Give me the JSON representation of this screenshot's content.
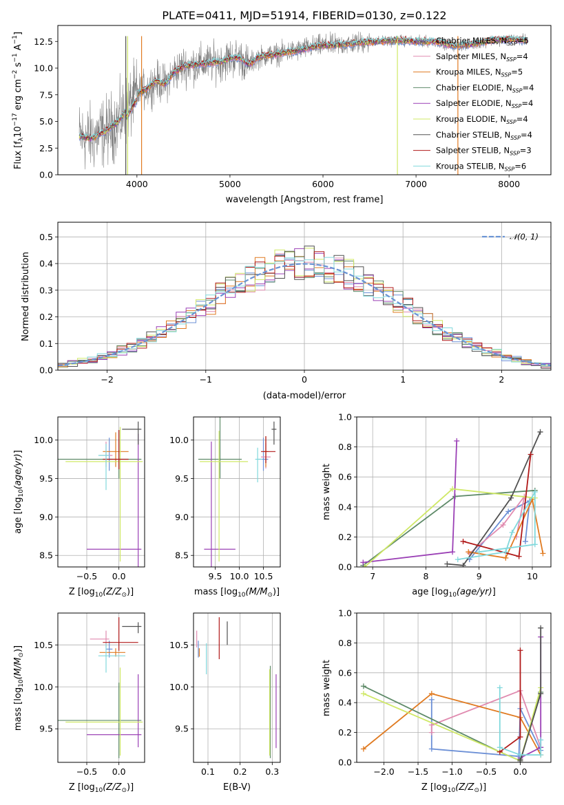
{
  "colors": {
    "Chabrier MILES": "#6b8fd6",
    "Salpeter MILES": "#e08aaf",
    "Kroupa MILES": "#e07a20",
    "Chabrier ELODIE": "#5e8a68",
    "Salpeter ELODIE": "#9a3fb5",
    "Kroupa ELODIE": "#cfe866",
    "Chabrier STELIB": "#505050",
    "Salpeter STELIB": "#b01818",
    "Kroupa STELIB": "#80d8dc",
    "spectrum": "#808080",
    "normal": "#6a93d4"
  },
  "chart_data": [
    {
      "id": "spectrum",
      "type": "line",
      "title": "PLATE=0411, MJD=51914, FIBERID=0130, z=0.122",
      "xlabel": "wavelength [Angstrom, rest frame]",
      "ylabel": "Flux [fλ10⁻¹⁷ erg cm⁻² s⁻¹ A⁻¹]",
      "xlim": [
        3150,
        8450
      ],
      "ylim": [
        0,
        14
      ],
      "xticks": [
        "4000",
        "5000",
        "6000",
        "7000",
        "8000"
      ],
      "yticks": [
        "0.0",
        "2.5",
        "5.0",
        "7.5",
        "10.0",
        "12.5"
      ],
      "legend_position": "top-right",
      "legend": [
        {
          "model": "Chabrier MILES",
          "label": "Chabrier MILES, N",
          "sub": "SSP",
          "tail": "=5"
        },
        {
          "model": "Salpeter MILES",
          "label": "Salpeter MILES, N",
          "sub": "SSP",
          "tail": "=4"
        },
        {
          "model": "Kroupa MILES",
          "label": "Kroupa MILES, N",
          "sub": "SSP",
          "tail": "=5"
        },
        {
          "model": "Chabrier ELODIE",
          "label": "Chabrier ELODIE, N",
          "sub": "SSP",
          "tail": "=4"
        },
        {
          "model": "Salpeter ELODIE",
          "label": "Salpeter ELODIE, N",
          "sub": "SSP",
          "tail": "=4"
        },
        {
          "model": "Kroupa ELODIE",
          "label": "Kroupa ELODIE, N",
          "sub": "SSP",
          "tail": "=4"
        },
        {
          "model": "Chabrier STELIB",
          "label": "Chabrier STELIB, N",
          "sub": "SSP",
          "tail": "=4"
        },
        {
          "model": "Salpeter STELIB",
          "label": "Salpeter STELIB, N",
          "sub": "SSP",
          "tail": "=3"
        },
        {
          "model": "Kroupa STELIB",
          "label": "Kroupa STELIB, N",
          "sub": "SSP",
          "tail": "=6"
        }
      ],
      "continuum_x": [
        3380,
        3500,
        3600,
        3700,
        3800,
        3900,
        4000,
        4100,
        4200,
        4300,
        4400,
        4500,
        4600,
        4700,
        4800,
        4900,
        5000,
        5100,
        5200,
        5300,
        5400,
        5500,
        5600,
        5700,
        5800,
        5900,
        6000,
        6200,
        6400,
        6600,
        6800,
        7000,
        7200,
        7400,
        7600,
        7800,
        8000,
        8200
      ],
      "continuum_y": [
        3.6,
        3.4,
        3.8,
        4.3,
        5.0,
        6.2,
        7.6,
        8.0,
        8.8,
        8.5,
        9.6,
        10.2,
        10.3,
        10.4,
        10.5,
        10.6,
        10.9,
        11.0,
        10.3,
        11.0,
        11.2,
        11.3,
        11.5,
        11.6,
        11.8,
        12.0,
        12.1,
        12.2,
        12.4,
        12.5,
        12.6,
        12.5,
        12.5,
        12.1,
        12.2,
        12.6,
        12.7,
        12.6
      ],
      "absorption_features": [
        {
          "model": "Chabrier STELIB",
          "x": 3880
        },
        {
          "model": "Kroupa ELODIE",
          "x": 3900
        },
        {
          "model": "Kroupa MILES",
          "x": 4050
        },
        {
          "model": "Kroupa ELODIE",
          "x": 6800
        },
        {
          "model": "Kroupa MILES",
          "x": 7450
        }
      ]
    },
    {
      "id": "residuals",
      "type": "histogram",
      "xlabel": "(data-model)/error",
      "ylabel": "Normed distribution",
      "xlim": [
        -2.5,
        2.5
      ],
      "ylim": [
        0,
        0.555
      ],
      "xticks": [
        "−2",
        "−1",
        "0",
        "1",
        "2"
      ],
      "yticks": [
        "0.0",
        "0.1",
        "0.2",
        "0.3",
        "0.4",
        "0.5"
      ],
      "grid": true,
      "legend_position": "top-right",
      "normal_label": "𝒩(0, 1)"
    },
    {
      "id": "age-vs-Z",
      "type": "errorbar",
      "xlabel": "Z [log₁₀(Z/Z⊙)]",
      "ylabel": "age  [log₁₀(age/yr)]",
      "xlim": [
        -0.95,
        0.4
      ],
      "ylim": [
        8.35,
        10.3
      ],
      "xticks": [
        "−0.5",
        "0.0"
      ],
      "yticks": [
        "8.5",
        "9.0",
        "9.5",
        "10.0"
      ],
      "grid": true,
      "points": [
        {
          "model": "Chabrier MILES",
          "x": -0.15,
          "y": 9.75,
          "xerr": [
            0.05,
            0.05
          ],
          "yerr": [
            0.15,
            0.28
          ]
        },
        {
          "model": "Salpeter MILES",
          "x": -0.2,
          "y": 9.8,
          "xerr": [
            0.1,
            0.1
          ],
          "yerr": [
            0.15,
            0.18
          ]
        },
        {
          "model": "Kroupa MILES",
          "x": -0.05,
          "y": 9.85,
          "xerr": [
            0.2,
            0.2
          ],
          "yerr": [
            0.2,
            0.25
          ]
        },
        {
          "model": "Chabrier ELODIE",
          "x": 0.0,
          "y": 9.75,
          "xerr": [
            0.95,
            0.35
          ],
          "yerr": [
            0.25,
            0.38
          ]
        },
        {
          "model": "Salpeter ELODIE",
          "x": 0.3,
          "y": 8.58,
          "xerr": [
            0.8,
            0.05
          ],
          "yerr": [
            0.25,
            1.5
          ]
        },
        {
          "model": "Kroupa ELODIE",
          "x": 0.02,
          "y": 9.72,
          "xerr": [
            0.85,
            0.35
          ],
          "yerr": [
            1.3,
            0.45
          ]
        },
        {
          "model": "Chabrier STELIB",
          "x": 0.3,
          "y": 10.14,
          "xerr": [
            0.25,
            0.05
          ],
          "yerr": [
            0.2,
            0.1
          ]
        },
        {
          "model": "Salpeter STELIB",
          "x": 0.0,
          "y": 9.75,
          "xerr": [
            0.25,
            0.15
          ],
          "yerr": [
            0.13,
            0.38
          ]
        },
        {
          "model": "Kroupa STELIB",
          "x": -0.2,
          "y": 9.8,
          "xerr": [
            0.12,
            0.05
          ],
          "yerr": [
            0.45,
            0.15
          ]
        }
      ]
    },
    {
      "id": "age-vs-mass",
      "type": "errorbar",
      "xlabel": "mass [log₁₀(M/M⊙)]",
      "xlim": [
        9.05,
        10.85
      ],
      "ylim": [
        8.35,
        10.3
      ],
      "xticks": [
        "9.5",
        "10.0",
        "10.5"
      ],
      "yticks": [
        "8.5",
        "9.0",
        "9.5",
        "10.0"
      ],
      "grid": true,
      "points": [
        {
          "model": "Chabrier MILES",
          "x": 10.5,
          "y": 9.75,
          "xerr": [
            0.1,
            0.1
          ],
          "yerr": [
            0.15,
            0.28
          ]
        },
        {
          "model": "Salpeter MILES",
          "x": 10.55,
          "y": 9.78,
          "xerr": [
            0.1,
            0.1
          ],
          "yerr": [
            0.15,
            0.18
          ]
        },
        {
          "model": "Kroupa MILES",
          "x": 10.55,
          "y": 9.85,
          "xerr": [
            0.05,
            0.05
          ],
          "yerr": [
            0.2,
            0.2
          ]
        },
        {
          "model": "Chabrier ELODIE",
          "x": 9.6,
          "y": 9.75,
          "xerr": [
            0.45,
            0.45
          ],
          "yerr": [
            0.25,
            1.3
          ]
        },
        {
          "model": "Salpeter ELODIE",
          "x": 9.42,
          "y": 8.58,
          "xerr": [
            0.15,
            0.5
          ],
          "yerr": [
            0.25,
            1.4
          ]
        },
        {
          "model": "Kroupa ELODIE",
          "x": 9.58,
          "y": 9.72,
          "xerr": [
            0.4,
            0.6
          ],
          "yerr": [
            1.3,
            0.4
          ]
        },
        {
          "model": "Chabrier STELIB",
          "x": 10.72,
          "y": 10.14,
          "xerr": [
            0.05,
            0.05
          ],
          "yerr": [
            0.2,
            0.1
          ]
        },
        {
          "model": "Salpeter STELIB",
          "x": 10.55,
          "y": 9.85,
          "xerr": [
            0.1,
            0.2
          ],
          "yerr": [
            0.15,
            0.2
          ]
        },
        {
          "model": "Kroupa STELIB",
          "x": 10.38,
          "y": 9.75,
          "xerr": [
            0.05,
            0.1
          ],
          "yerr": [
            0.3,
            0.15
          ]
        }
      ]
    },
    {
      "id": "weight-vs-age",
      "type": "line",
      "xlabel": "age  [log₁₀(age/yr)]",
      "ylabel": "mass weight",
      "xlim": [
        6.7,
        10.35
      ],
      "ylim": [
        0,
        1.0
      ],
      "xticks": [
        "7",
        "8",
        "9",
        "10"
      ],
      "yticks": [
        "0.0",
        "0.2",
        "0.4",
        "0.6",
        "0.8",
        "1.0"
      ],
      "grid": true,
      "series": [
        {
          "model": "Chabrier MILES",
          "x": [
            8.82,
            9.55,
            9.95,
            9.87
          ],
          "y": [
            0.05,
            0.37,
            0.44,
            0.17
          ]
        },
        {
          "model": "Salpeter MILES",
          "x": [
            8.82,
            9.45,
            9.85,
            9.7
          ],
          "y": [
            0.09,
            0.28,
            0.47,
            0.2
          ]
        },
        {
          "model": "Kroupa MILES",
          "x": [
            8.8,
            9.5,
            10.0,
            10.2
          ],
          "y": [
            0.1,
            0.06,
            0.45,
            0.09
          ]
        },
        {
          "model": "Chabrier ELODIE",
          "x": [
            6.82,
            8.55,
            10.05
          ],
          "y": [
            0.01,
            0.47,
            0.51
          ]
        },
        {
          "model": "Salpeter ELODIE",
          "x": [
            6.82,
            8.5,
            8.58
          ],
          "y": [
            0.03,
            0.1,
            0.84
          ]
        },
        {
          "model": "Kroupa ELODIE",
          "x": [
            6.85,
            8.5,
            10.05
          ],
          "y": [
            0.0,
            0.52,
            0.46
          ]
        },
        {
          "model": "Chabrier STELIB",
          "x": [
            8.4,
            8.7,
            9.6,
            10.15
          ],
          "y": [
            0.02,
            0.01,
            0.46,
            0.9
          ]
        },
        {
          "model": "Salpeter STELIB",
          "x": [
            8.7,
            9.75,
            9.97
          ],
          "y": [
            0.17,
            0.07,
            0.75
          ]
        },
        {
          "model": "Kroupa STELIB",
          "x": [
            8.6,
            9.5,
            9.62,
            10.05,
            10.05,
            9.0
          ],
          "y": [
            0.05,
            0.1,
            0.23,
            0.5,
            0.15,
            0.1
          ]
        }
      ]
    },
    {
      "id": "mass-vs-Z",
      "type": "errorbar",
      "xlabel": "Z [log₁₀(Z/Z⊙)]",
      "ylabel": "mass [log₁₀(M/M⊙)]",
      "xlim": [
        -0.95,
        0.4
      ],
      "ylim": [
        9.1,
        10.88
      ],
      "xticks": [
        "−0.5",
        "0.0"
      ],
      "yticks": [
        "9.5",
        "10.0",
        "10.5"
      ],
      "grid": true,
      "points": [
        {
          "model": "Chabrier MILES",
          "x": -0.15,
          "y": 10.45,
          "xerr": [
            0.05,
            0.05
          ],
          "yerr": [
            0.1,
            0.1
          ]
        },
        {
          "model": "Salpeter MILES",
          "x": -0.2,
          "y": 10.57,
          "xerr": [
            0.25,
            0.05
          ],
          "yerr": [
            0.1,
            0.1
          ]
        },
        {
          "model": "Kroupa MILES",
          "x": -0.05,
          "y": 10.41,
          "xerr": [
            0.25,
            0.15
          ],
          "yerr": [
            0.05,
            0.05
          ]
        },
        {
          "model": "Chabrier ELODIE",
          "x": 0.0,
          "y": 9.6,
          "xerr": [
            0.95,
            0.35
          ],
          "yerr": [
            0.45,
            0.45
          ]
        },
        {
          "model": "Salpeter ELODIE",
          "x": 0.3,
          "y": 9.43,
          "xerr": [
            0.8,
            0.05
          ],
          "yerr": [
            0.15,
            0.72
          ]
        },
        {
          "model": "Kroupa ELODIE",
          "x": 0.02,
          "y": 9.58,
          "xerr": [
            0.85,
            0.35
          ],
          "yerr": [
            0.4,
            0.65
          ]
        },
        {
          "model": "Chabrier STELIB",
          "x": 0.3,
          "y": 10.72,
          "xerr": [
            0.25,
            0.05
          ],
          "yerr": [
            0.08,
            0.05
          ]
        },
        {
          "model": "Salpeter STELIB",
          "x": 0.0,
          "y": 10.53,
          "xerr": [
            0.25,
            0.3
          ],
          "yerr": [
            0.1,
            0.3
          ]
        },
        {
          "model": "Kroupa STELIB",
          "x": -0.2,
          "y": 10.37,
          "xerr": [
            0.12,
            0.3
          ],
          "yerr": [
            0.2,
            0.15
          ]
        }
      ]
    },
    {
      "id": "mass-vs-ebv",
      "type": "errorbar",
      "xlabel": "E(B-V)",
      "xlim": [
        0.055,
        0.325
      ],
      "ylim": [
        9.1,
        10.88
      ],
      "xticks": [
        "0.1",
        "0.2",
        "0.3"
      ],
      "yticks": [
        "9.5",
        "10.0",
        "10.5"
      ],
      "grid": true,
      "points": [
        {
          "model": "Chabrier MILES",
          "x": 0.07,
          "y": 10.45,
          "xerr": [
            0,
            0
          ],
          "yerr": [
            0.1,
            0.1
          ]
        },
        {
          "model": "Salpeter MILES",
          "x": 0.065,
          "y": 10.57,
          "xerr": [
            0,
            0
          ],
          "yerr": [
            0.1,
            0.1
          ]
        },
        {
          "model": "Kroupa MILES",
          "x": 0.073,
          "y": 10.41,
          "xerr": [
            0,
            0
          ],
          "yerr": [
            0.05,
            0.05
          ]
        },
        {
          "model": "Chabrier ELODIE",
          "x": 0.294,
          "y": 9.6,
          "xerr": [
            0,
            0
          ],
          "yerr": [
            0.45,
            0.65
          ]
        },
        {
          "model": "Salpeter ELODIE",
          "x": 0.312,
          "y": 9.7,
          "xerr": [
            0,
            0
          ],
          "yerr": [
            0.43,
            0.45
          ]
        },
        {
          "model": "Kroupa ELODIE",
          "x": 0.292,
          "y": 9.58,
          "xerr": [
            0,
            0
          ],
          "yerr": [
            0.4,
            0.63
          ]
        },
        {
          "model": "Chabrier STELIB",
          "x": 0.16,
          "y": 10.65,
          "xerr": [
            0,
            0
          ],
          "yerr": [
            0.15,
            0.13
          ]
        },
        {
          "model": "Salpeter STELIB",
          "x": 0.135,
          "y": 10.55,
          "xerr": [
            0,
            0
          ],
          "yerr": [
            0.22,
            0.28
          ]
        },
        {
          "model": "Kroupa STELIB",
          "x": 0.095,
          "y": 10.37,
          "xerr": [
            0,
            0
          ],
          "yerr": [
            0.22,
            0.15
          ]
        }
      ]
    },
    {
      "id": "weight-vs-Z",
      "type": "line",
      "xlabel": "Z [log₁₀(Z/Z⊙)]",
      "ylabel": "mass weight",
      "xlim": [
        -2.4,
        0.45
      ],
      "ylim": [
        0,
        1.0
      ],
      "xticks": [
        "−2.0",
        "−1.5",
        "−1.0",
        "−0.5",
        "0.0"
      ],
      "yticks": [
        "0.0",
        "0.2",
        "0.4",
        "0.6",
        "0.8",
        "1.0"
      ],
      "grid": true,
      "series": [
        {
          "model": "Chabrier MILES",
          "x": [
            -1.3,
            -1.3,
            -0.02,
            0.0,
            0.3
          ],
          "y": [
            0.42,
            0.09,
            0.04,
            0.36,
            0.08
          ]
        },
        {
          "model": "Salpeter MILES",
          "x": [
            -1.3,
            -1.3,
            0.0,
            0.3
          ],
          "y": [
            0.2,
            0.25,
            0.48,
            0.1
          ]
        },
        {
          "model": "Kroupa MILES",
          "x": [
            -2.3,
            -1.3,
            0.0,
            0.3
          ],
          "y": [
            0.09,
            0.46,
            0.3,
            0.05
          ]
        },
        {
          "model": "Chabrier ELODIE",
          "x": [
            -2.3,
            -0.3,
            0.0,
            0.3
          ],
          "y": [
            0.51,
            0.07,
            0.01,
            0.47
          ]
        },
        {
          "model": "Salpeter ELODIE",
          "x": [
            0.0,
            0.3,
            0.3
          ],
          "y": [
            0.03,
            0.1,
            0.84
          ]
        },
        {
          "model": "Kroupa ELODIE",
          "x": [
            -2.3,
            -0.3,
            0.0,
            0.3
          ],
          "y": [
            0.46,
            0.07,
            0.01,
            0.5
          ]
        },
        {
          "model": "Chabrier STELIB",
          "x": [
            0.0,
            0.0,
            0.3,
            0.3
          ],
          "y": [
            0.02,
            0.01,
            0.46,
            0.9
          ]
        },
        {
          "model": "Salpeter STELIB",
          "x": [
            -0.3,
            0.0,
            0.0
          ],
          "y": [
            0.07,
            0.17,
            0.75
          ]
        },
        {
          "model": "Kroupa STELIB",
          "x": [
            -0.3,
            -0.3,
            0.0,
            0.3,
            0.3
          ],
          "y": [
            0.5,
            0.1,
            0.05,
            0.05,
            0.15
          ]
        }
      ]
    }
  ]
}
